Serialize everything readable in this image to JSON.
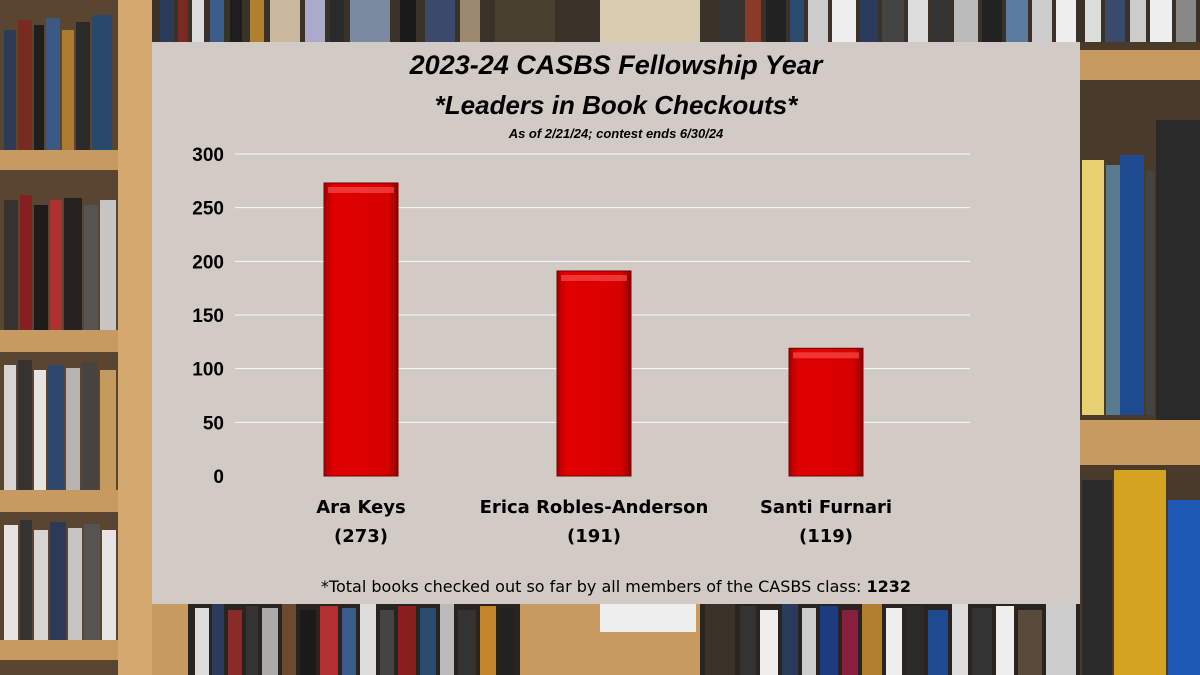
{
  "chart_data": {
    "type": "bar",
    "title": "2023-24 CASBS Fellowship Year",
    "subtitle": "*Leaders in Book Checkouts*",
    "note": "As of 2/21/24; contest ends 6/30/24",
    "categories": [
      "Ara Keys",
      "Erica Robles-Anderson",
      "Santi Furnari"
    ],
    "category_values_labels": [
      "(273)",
      "(191)",
      "(119)"
    ],
    "values": [
      273,
      191,
      119
    ],
    "ylim": [
      0,
      300
    ],
    "yticks": [
      "0",
      "50",
      "100",
      "150",
      "200",
      "250",
      "300"
    ],
    "grid": true,
    "bar_color": "#dd0000",
    "xlabel": "",
    "ylabel": ""
  },
  "footnote": {
    "text": "*Total books checked out so far by all members of the CASBS class: ",
    "total": "1232"
  },
  "background": {
    "description_colors": [
      "#8a6a45",
      "#c9a36b",
      "#3a3a3a"
    ]
  }
}
